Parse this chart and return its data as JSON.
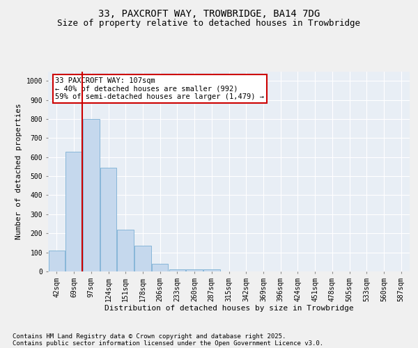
{
  "title_line1": "33, PAXCROFT WAY, TROWBRIDGE, BA14 7DG",
  "title_line2": "Size of property relative to detached houses in Trowbridge",
  "xlabel": "Distribution of detached houses by size in Trowbridge",
  "ylabel": "Number of detached properties",
  "categories": [
    "42sqm",
    "69sqm",
    "97sqm",
    "124sqm",
    "151sqm",
    "178sqm",
    "206sqm",
    "233sqm",
    "260sqm",
    "287sqm",
    "315sqm",
    "342sqm",
    "369sqm",
    "396sqm",
    "424sqm",
    "451sqm",
    "478sqm",
    "505sqm",
    "533sqm",
    "560sqm",
    "587sqm"
  ],
  "values": [
    110,
    630,
    800,
    545,
    220,
    135,
    40,
    12,
    12,
    10,
    0,
    0,
    0,
    0,
    0,
    0,
    0,
    0,
    0,
    0,
    0
  ],
  "bar_color": "#c5d8ed",
  "bar_edge_color": "#7bafd4",
  "vline_color": "#cc0000",
  "vline_index": 1.5,
  "annotation_text": "33 PAXCROFT WAY: 107sqm\n← 40% of detached houses are smaller (992)\n59% of semi-detached houses are larger (1,479) →",
  "annotation_box_color": "#ffffff",
  "annotation_box_edge": "#cc0000",
  "ylim": [
    0,
    1050
  ],
  "yticks": [
    0,
    100,
    200,
    300,
    400,
    500,
    600,
    700,
    800,
    900,
    1000
  ],
  "plot_bg": "#e8eef5",
  "fig_bg": "#f0f0f0",
  "grid_color": "#ffffff",
  "footer_line1": "Contains HM Land Registry data © Crown copyright and database right 2025.",
  "footer_line2": "Contains public sector information licensed under the Open Government Licence v3.0.",
  "title_fontsize": 10,
  "subtitle_fontsize": 9,
  "axis_label_fontsize": 8,
  "tick_fontsize": 7,
  "annotation_fontsize": 7.5,
  "footer_fontsize": 6.5
}
